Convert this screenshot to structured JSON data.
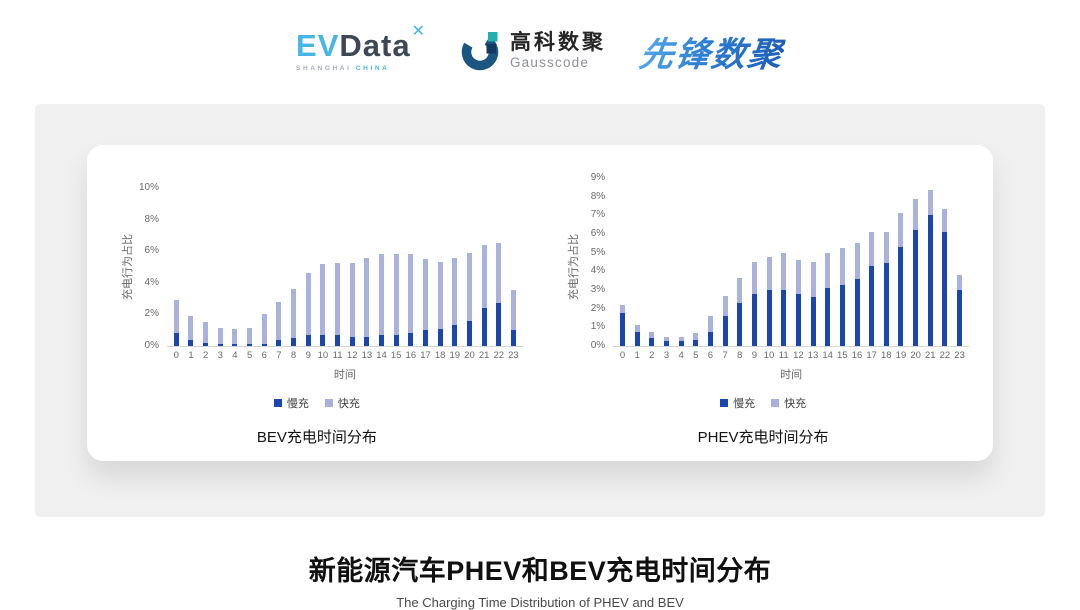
{
  "header": {
    "logo_evdata": {
      "ev": "EV",
      "data": "Data",
      "mark": "✕",
      "sub_left": "SHANGHAI",
      "sub_right": "CHINA"
    },
    "logo_gausscode": {
      "cn": "高科数聚",
      "en": "Gausscode"
    },
    "logo_xianfeng": {
      "text": "先锋数聚"
    }
  },
  "colors": {
    "slow_charge": "#1b46ad",
    "fast_charge": "#a9b1dd",
    "axis_text": "#6a6a6a",
    "axis_line": "#d5d5d5",
    "panel_bg": "#f0f0f1",
    "gauss_blue": "#1a567f",
    "gauss_teal": "#23b0ad",
    "evdata_blue": "#45b6e6"
  },
  "footer": {
    "title": "新能源汽车PHEV和BEV充电时间分布",
    "subtitle": "The Charging Time Distribution of PHEV and BEV"
  },
  "chart_data": [
    {
      "id": "bev",
      "type": "bar",
      "stacked": true,
      "caption": "BEV充电时间分布",
      "xlabel": "时间",
      "ylabel": "充电行为占比",
      "ylim": [
        0,
        10
      ],
      "ytick_step": 2,
      "ytick_suffix": "%",
      "grid": false,
      "legend_position": "bottom",
      "categories": [
        0,
        1,
        2,
        3,
        4,
        5,
        6,
        7,
        8,
        9,
        10,
        11,
        12,
        13,
        14,
        15,
        16,
        17,
        18,
        19,
        20,
        21,
        22,
        23
      ],
      "series": [
        {
          "name": "慢充",
          "color": "#1b46ad",
          "values": [
            0.8,
            0.35,
            0.2,
            0.1,
            0.1,
            0.1,
            0.15,
            0.35,
            0.5,
            0.7,
            0.7,
            0.7,
            0.6,
            0.6,
            0.7,
            0.7,
            0.85,
            1.0,
            1.1,
            1.3,
            1.6,
            2.4,
            2.75,
            1.0
          ]
        },
        {
          "name": "快充",
          "color": "#a9b1dd",
          "values": [
            2.1,
            1.55,
            1.35,
            1.05,
            0.95,
            1.05,
            1.85,
            2.45,
            3.1,
            3.9,
            4.5,
            4.55,
            4.65,
            5.0,
            5.1,
            5.1,
            5.0,
            4.5,
            4.2,
            4.3,
            4.3,
            4.0,
            3.8,
            2.55
          ]
        }
      ]
    },
    {
      "id": "phev",
      "type": "bar",
      "stacked": true,
      "caption": "PHEV充电时间分布",
      "xlabel": "时间",
      "ylabel": "充电行为占比",
      "ylim": [
        0,
        9
      ],
      "ytick_step": 1,
      "ytick_suffix": "%",
      "grid": false,
      "legend_position": "bottom",
      "categories": [
        0,
        1,
        2,
        3,
        4,
        5,
        6,
        7,
        8,
        9,
        10,
        11,
        12,
        13,
        14,
        15,
        16,
        17,
        18,
        19,
        20,
        21,
        22,
        23
      ],
      "series": [
        {
          "name": "慢充",
          "color": "#1b46ad",
          "values": [
            1.75,
            0.75,
            0.45,
            0.25,
            0.25,
            0.3,
            0.75,
            1.6,
            2.3,
            2.8,
            3.0,
            3.0,
            2.8,
            2.65,
            3.1,
            3.25,
            3.6,
            4.3,
            4.45,
            5.3,
            6.2,
            7.0,
            6.1,
            3.0
          ]
        },
        {
          "name": "快充",
          "color": "#a9b1dd",
          "values": [
            0.45,
            0.4,
            0.3,
            0.25,
            0.25,
            0.4,
            0.85,
            1.1,
            1.35,
            1.7,
            1.75,
            2.0,
            1.8,
            1.85,
            1.9,
            2.0,
            1.9,
            1.8,
            1.65,
            1.8,
            1.7,
            1.35,
            1.25,
            0.8
          ]
        }
      ]
    }
  ]
}
